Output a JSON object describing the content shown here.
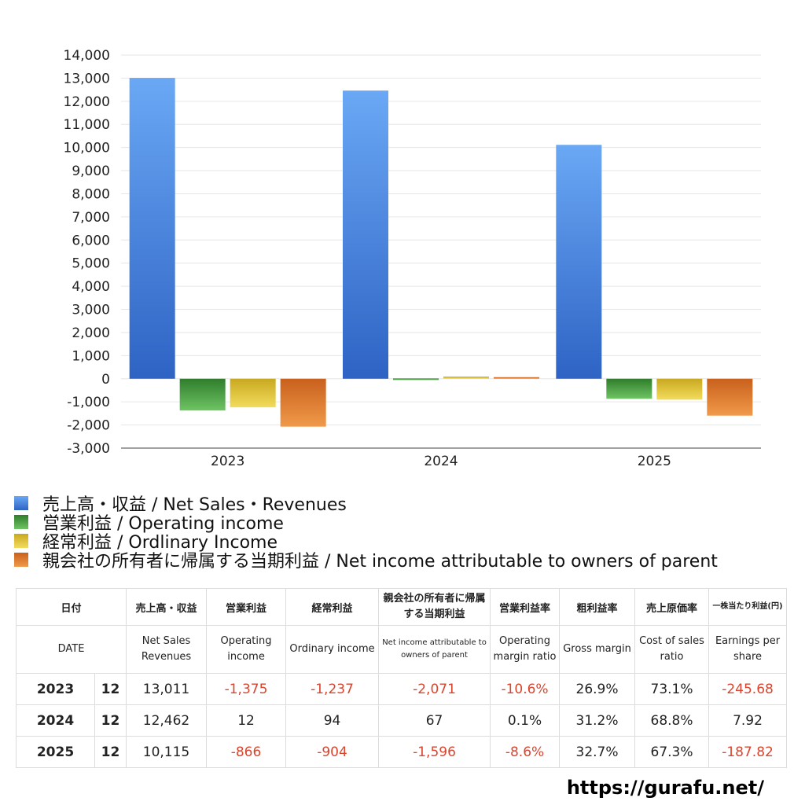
{
  "chart_data": {
    "type": "bar",
    "categories": [
      "2023",
      "2024",
      "2025"
    ],
    "series": [
      {
        "name": "売上高・収益 / Net Sales・Revenues",
        "color": "#4a8ee6",
        "values": [
          13011,
          12462,
          10115
        ]
      },
      {
        "name": "営業利益 / Operating income",
        "color": "#4fa94a",
        "values": [
          -1375,
          12,
          -866
        ]
      },
      {
        "name": "経常利益 / Ordlinary Income",
        "color": "#e3c53a",
        "values": [
          -1237,
          94,
          -904
        ]
      },
      {
        "name": "親会社の所有者に帰属する当期利益 / Net income attributable to owners of parent",
        "color": "#e0782e",
        "values": [
          -2071,
          67,
          -1596
        ]
      }
    ],
    "ylim": [
      -3000,
      14000
    ],
    "yticks": [
      14000,
      13000,
      12000,
      11000,
      10000,
      9000,
      8000,
      7000,
      6000,
      5000,
      4000,
      3000,
      2000,
      1000,
      0,
      -1000,
      -2000,
      -3000
    ],
    "ytick_labels": [
      "14,000",
      "13,000",
      "12,000",
      "11,000",
      "10,000",
      "9,000",
      "8,000",
      "7,000",
      "6,000",
      "5,000",
      "4,000",
      "3,000",
      "2,000",
      "1,000",
      "0",
      "-1,000",
      "-2,000",
      "-3,000"
    ],
    "grid": true,
    "legend_position": "bottom-left"
  },
  "table": {
    "headers_jp": [
      "日付",
      "売上高・収益",
      "営業利益",
      "経常利益",
      "親会社の所有者に帰属する当期利益",
      "営業利益率",
      "粗利益率",
      "売上原価率",
      "一株当たり利益(円)"
    ],
    "headers_en": [
      "DATE",
      "Net Sales Revenues",
      "Operating income",
      "Ordinary income",
      "Net income attributable to owners of parent",
      "Operating margin ratio",
      "Gross margin",
      "Cost of sales ratio",
      "Earnings per share"
    ],
    "rows": [
      {
        "year": "2023",
        "month": "12",
        "sales": "13,011",
        "op": "-1,375",
        "ord": "-1,237",
        "net": "-2,071",
        "opm": "-10.6%",
        "gm": "26.9%",
        "cos": "73.1%",
        "eps": "-245.68"
      },
      {
        "year": "2024",
        "month": "12",
        "sales": "12,462",
        "op": "12",
        "ord": "94",
        "net": "67",
        "opm": "0.1%",
        "gm": "31.2%",
        "cos": "68.8%",
        "eps": "7.92"
      },
      {
        "year": "2025",
        "month": "12",
        "sales": "10,115",
        "op": "-866",
        "ord": "-904",
        "net": "-1,596",
        "opm": "-8.6%",
        "gm": "32.7%",
        "cos": "67.3%",
        "eps": "-187.82"
      }
    ]
  },
  "footer": {
    "site": "https://gurafu.net/"
  }
}
